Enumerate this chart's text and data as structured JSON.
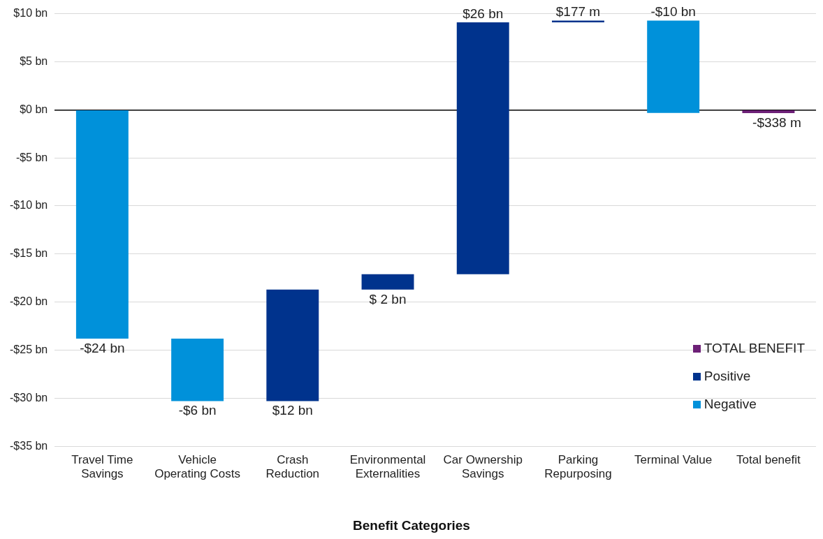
{
  "chart_data": {
    "type": "bar",
    "xlabel": "Benefit Categories",
    "categories": [
      "Travel Time\nSavings",
      "Vehicle\nOperating Costs",
      "Crash\nReduction",
      "Environmental\nExternalities",
      "Car Ownership\nSavings",
      "Parking\nRepurposing",
      "Terminal Value",
      "Total benefit"
    ],
    "series": [
      {
        "name": "TOTAL BENEFIT",
        "color": "#6d2077",
        "values": [
          null,
          null,
          null,
          null,
          null,
          null,
          null,
          -0.338
        ],
        "base": [
          null,
          null,
          null,
          null,
          null,
          null,
          null,
          0
        ]
      },
      {
        "name": "Positive",
        "color": "#00338d",
        "values": [
          null,
          null,
          11.6,
          1.6,
          26.2,
          0.177,
          null,
          null
        ],
        "base": [
          null,
          null,
          -30.3,
          -18.7,
          -17.1,
          9.1,
          null,
          null
        ]
      },
      {
        "name": "Negative",
        "color": "#0091da",
        "values": [
          -23.8,
          -6.5,
          null,
          null,
          null,
          null,
          -9.6,
          null
        ],
        "base": [
          0,
          -23.8,
          null,
          null,
          null,
          null,
          9.277,
          null
        ]
      }
    ],
    "value_labels": [
      "-$24 bn",
      "-$6 bn",
      "$12 bn",
      "$ 2 bn",
      "$26 bn",
      "$177 m",
      "-$10 bn",
      "-$338 m"
    ],
    "ylim": [
      -35,
      10
    ],
    "yticks": [
      {
        "value": 10,
        "label": "$10 bn"
      },
      {
        "value": 5,
        "label": "$5 bn"
      },
      {
        "value": 0,
        "label": "$0 bn"
      },
      {
        "value": -5,
        "label": "-$5 bn"
      },
      {
        "value": -10,
        "label": "-$10 bn"
      },
      {
        "value": -15,
        "label": "-$15 bn"
      },
      {
        "value": -20,
        "label": "-$20 bn"
      },
      {
        "value": -25,
        "label": "-$25 bn"
      },
      {
        "value": -30,
        "label": "-$30 bn"
      },
      {
        "value": -35,
        "label": "-$35 bn"
      }
    ],
    "grid": "y",
    "legend": "bottom right"
  }
}
